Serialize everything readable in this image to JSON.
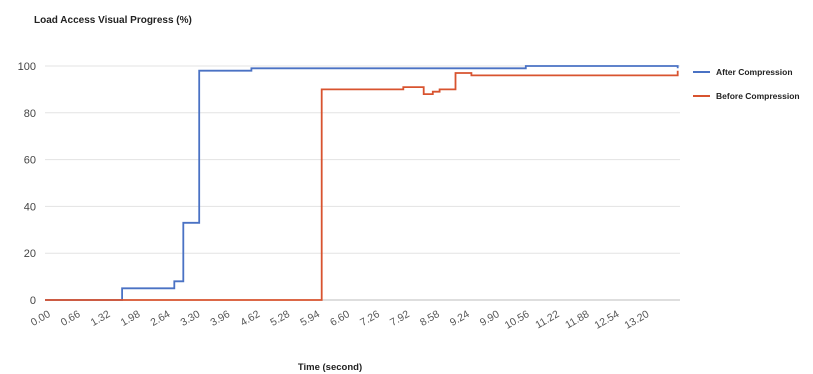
{
  "chart_data": {
    "type": "line",
    "title": "Load Access Visual Progress (%)",
    "xlabel": "Time (second)",
    "ylabel": "",
    "xlim": [
      0,
      14.0
    ],
    "ylim": [
      0,
      100
    ],
    "x_ticks": [
      "0.00",
      "0.66",
      "1.32",
      "1.98",
      "2.64",
      "3.30",
      "3.96",
      "4.62",
      "5.28",
      "5.94",
      "6.60",
      "7.26",
      "7.92",
      "8.58",
      "9.24",
      "9.90",
      "10.56",
      "11.22",
      "11.88",
      "12.54",
      "13.20"
    ],
    "y_ticks": [
      0,
      20,
      40,
      60,
      80,
      100
    ],
    "grid": true,
    "legend": "right",
    "series": [
      {
        "name": "After Compression",
        "color": "#4a72c4",
        "step": true,
        "points": [
          [
            0,
            0
          ],
          [
            1.7,
            0
          ],
          [
            1.7,
            5
          ],
          [
            2.85,
            5
          ],
          [
            2.85,
            8
          ],
          [
            3.05,
            8
          ],
          [
            3.05,
            33
          ],
          [
            3.4,
            33
          ],
          [
            3.4,
            98
          ],
          [
            4.55,
            98
          ],
          [
            4.55,
            99
          ],
          [
            10.6,
            99
          ],
          [
            10.6,
            100
          ],
          [
            13.95,
            100
          ],
          [
            13.95,
            99
          ]
        ]
      },
      {
        "name": "Before Compression",
        "color": "#d8532f",
        "step": true,
        "points": [
          [
            0,
            0
          ],
          [
            6.1,
            0
          ],
          [
            6.1,
            90
          ],
          [
            7.9,
            90
          ],
          [
            7.9,
            91
          ],
          [
            8.35,
            91
          ],
          [
            8.35,
            88
          ],
          [
            8.55,
            88
          ],
          [
            8.55,
            89
          ],
          [
            8.7,
            89
          ],
          [
            8.7,
            90
          ],
          [
            9.05,
            90
          ],
          [
            9.05,
            97
          ],
          [
            9.4,
            97
          ],
          [
            9.4,
            96
          ],
          [
            13.95,
            96
          ],
          [
            13.95,
            98
          ]
        ]
      }
    ]
  }
}
